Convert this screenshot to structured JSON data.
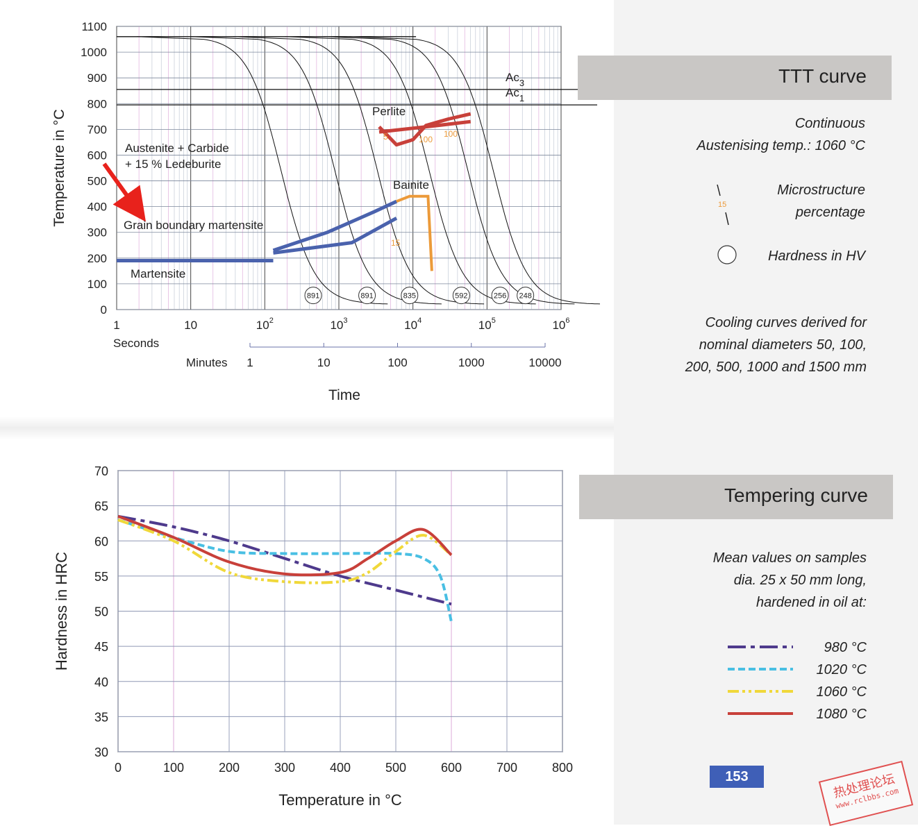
{
  "ttt_header": "TTT curve",
  "ttt_notes": {
    "mode": "Continuous",
    "austenising": "Austenising temp.: 1060 °C",
    "legend_micro_value": "15",
    "legend_micro_line1": "Microstructure",
    "legend_micro_line2": "percentage",
    "legend_hardness": "Hardness in HV",
    "cooling_line1": "Cooling curves derived for",
    "cooling_line2": "nominal diameters 50, 100,",
    "cooling_line3": "200, 500, 1000 and 1500 mm"
  },
  "tempering_header": "Tempering curve",
  "tempering_notes": {
    "line1": "Mean values on samples",
    "line2": "dia. 25 x 50 mm long,",
    "line3": "hardened in oil at:"
  },
  "page_number": "153",
  "watermark": {
    "text": "热处理论坛",
    "url": "www.rclbbs.com"
  },
  "colors": {
    "red": "#c8403a",
    "blue": "#4a62ad",
    "orange": "#ec9a3a",
    "purple": "#4e3a8c",
    "cyan": "#49bfe3",
    "yellow": "#f0d83a",
    "arrow": "#e8221c"
  },
  "chart_data": [
    {
      "type": "line",
      "title": "",
      "ylabel": "Temperature in °C",
      "xlabel": "Time",
      "x_scale": "log",
      "xlim_seconds": [
        1,
        1000000
      ],
      "ylim": [
        0,
        1100
      ],
      "y_ticks": [
        0,
        100,
        200,
        300,
        400,
        500,
        600,
        700,
        800,
        900,
        1000,
        1100
      ],
      "x_ticks_seconds": [
        {
          "v": 1,
          "b": "1",
          "e": ""
        },
        {
          "v": 10,
          "b": "10",
          "e": ""
        },
        {
          "v": 100,
          "b": "10",
          "e": "2"
        },
        {
          "v": 1000,
          "b": "10",
          "e": "3"
        },
        {
          "v": 10000,
          "b": "10",
          "e": "4"
        },
        {
          "v": 100000,
          "b": "10",
          "e": "5"
        },
        {
          "v": 1000000,
          "b": "10",
          "e": "6"
        }
      ],
      "seconds_label": "Seconds",
      "minutes_label": "Minutes",
      "minutes_ticks": [
        "1",
        "10",
        "100",
        "1000",
        "10000"
      ],
      "ac3": {
        "label": "Ac",
        "sub": "3",
        "temp": 855
      },
      "ac1": {
        "label": "Ac",
        "sub": "1",
        "temp": 795
      },
      "austenitising_temp": 1060,
      "regions": [
        {
          "label": "Perlite"
        },
        {
          "label": "Bainite"
        },
        {
          "label": "Martensite"
        },
        {
          "label": "Grain boundary martensite"
        },
        {
          "label": "Austenite + Carbide",
          "label2": "+ 15 % Ledeburite"
        }
      ],
      "perlite_percentages": [
        "5",
        "100",
        "100"
      ],
      "bainite_percentage": "15",
      "cooling_curves": [
        {
          "t_start": 15,
          "hardness": "891"
        },
        {
          "t_start": 80,
          "hardness": "891"
        },
        {
          "t_start": 300,
          "hardness": "835"
        },
        {
          "t_start": 1500,
          "hardness": "592"
        },
        {
          "t_start": 5000,
          "hardness": "256"
        },
        {
          "t_start": 11000,
          "hardness": "248"
        }
      ],
      "perlite_boundary": [
        [
          3500,
          710
        ],
        [
          6000,
          640
        ],
        [
          10000,
          660
        ],
        [
          15000,
          715
        ],
        [
          30000,
          740
        ],
        [
          60000,
          760
        ]
      ],
      "perlite_boundary_2": [
        [
          3500,
          690
        ],
        [
          15000,
          710
        ],
        [
          60000,
          730
        ]
      ],
      "bainite_boundary": [
        [
          130,
          230
        ],
        [
          700,
          300
        ],
        [
          3000,
          380
        ],
        [
          6000,
          420
        ],
        [
          9000,
          440
        ],
        [
          16000,
          440
        ],
        [
          18000,
          150
        ]
      ],
      "bainite_boundary_2": [
        [
          130,
          220
        ],
        [
          1500,
          260
        ],
        [
          6000,
          355
        ]
      ],
      "martensite_start": 190
    },
    {
      "type": "line",
      "title": "",
      "xlabel": "Temperature in °C",
      "ylabel": "Hardness in HRC",
      "xlim": [
        0,
        800
      ],
      "ylim": [
        30,
        70
      ],
      "x_ticks": [
        0,
        100,
        200,
        300,
        400,
        500,
        600,
        700,
        800
      ],
      "y_ticks": [
        30,
        35,
        40,
        45,
        50,
        55,
        60,
        65,
        70
      ],
      "series": [
        {
          "name": "980 °C",
          "color": "#4e3a8c",
          "dash": "dashdot",
          "x": [
            0,
            100,
            200,
            300,
            400,
            500,
            600
          ],
          "y": [
            63.5,
            62,
            60,
            57.5,
            55,
            53,
            51
          ]
        },
        {
          "name": "1020 °C",
          "color": "#49bfe3",
          "dash": "dash",
          "x": [
            0,
            100,
            200,
            300,
            400,
            500,
            550,
            580,
            600
          ],
          "y": [
            63,
            60.5,
            58.5,
            58.2,
            58.2,
            58.2,
            57.5,
            55,
            48.5
          ]
        },
        {
          "name": "1060 °C",
          "color": "#f0d83a",
          "dash": "dashdotdot",
          "x": [
            0,
            100,
            200,
            300,
            400,
            450,
            500,
            550,
            600
          ],
          "y": [
            63,
            60,
            55.5,
            54.2,
            54.2,
            55.5,
            58.5,
            60.8,
            58
          ]
        },
        {
          "name": "1080 °C",
          "color": "#c8403a",
          "dash": "solid",
          "x": [
            0,
            100,
            200,
            300,
            400,
            450,
            500,
            550,
            600
          ],
          "y": [
            63.5,
            60.5,
            57,
            55.3,
            55.5,
            57.5,
            60,
            61.6,
            58
          ]
        }
      ]
    }
  ]
}
